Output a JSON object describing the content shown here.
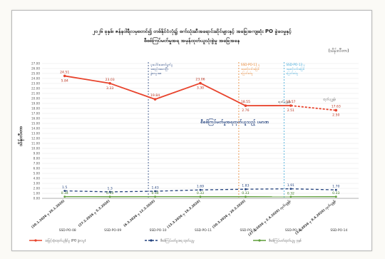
{
  "chart_data": {
    "type": "line",
    "title_line1": "၂၀၂၆ ခုနှစ်၊ ဇန်နဝါရီလမှစတင်၍ တစ်နိုင်ငံလုံး၌ စက်သုံးဆီအရောင်းဆိုင်များနှင့် အခြေအကျဆုံး PO ခွဲဝေမှုနှင့်",
    "title_line2": "စီစစ်ကြပ်မတ်မှုအရ အမှန်ထုတ်ယူသုံးစွဲမှု အခြေအနေ",
    "unit_label": "(သိန်းလီတာ)",
    "ylabel": "သိန်းလီတာ",
    "ylim": [
      0,
      27
    ],
    "ytick_step": 1,
    "ytick_labels": [
      "0.00",
      "1.00",
      "2.00",
      "3.00",
      "4.00",
      "5.00",
      "6.00",
      "7.00",
      "8.00",
      "9.00",
      "10.00",
      "11.00",
      "12.00",
      "13.00",
      "14.00",
      "15.00",
      "16.00",
      "17.00",
      "18.00",
      "19.00",
      "20.00",
      "21.00",
      "22.00",
      "23.00",
      "24.00",
      "25.00",
      "26.00",
      "27.00"
    ],
    "categories": [
      "(20.1.2026 မှ 26.1.2026)",
      "(27.2.2026 မှ 5.3.2026)",
      "(6.3.2026 မှ 12.3.2026)",
      "(13.3.2026 မှ 19.3.2026)",
      "(20.3.2026 မှ 26.3.2026)",
      "(27.3.2026 မှ 2.4.2026) ထုတ်ယူနှုန်း",
      "(3.4.2026 မှ 9.4.2026) ထုတ်ယူနှုန်း"
    ],
    "po_labels": [
      "SSD-PO-08",
      "SSD-PO-09",
      "SSD-PO-10",
      "SSD-PO-11",
      "SSD-PO-12",
      "SSD-PO-13",
      "SSD-PO-14"
    ],
    "series": [
      {
        "name": "အမြင့်ဆုံးထုတ်ယူနိုင်မှု (PO ခွဲဝေမှု)",
        "color": "#e8432c",
        "style": "solid",
        "values": [
          24.51,
          23.03,
          19.84,
          23.06,
          18.55,
          18.57,
          17.63
        ],
        "labels": [
          "24.51",
          "23.03",
          "19.84",
          "23.06",
          "18.55",
          "18.57",
          "17.63"
        ],
        "dashed_from": 5
      },
      {
        "name": "စီစစ်ကြပ်မတ်မှုအရ ထုတ်ယူမှု",
        "color": "#23427e",
        "style": "dashed",
        "values": [
          1.5,
          1.3,
          1.43,
          1.69,
          1.83,
          1.91,
          1.7
        ],
        "labels": [
          "1.5",
          "1.3",
          "1.43",
          "1.69",
          "1.83",
          "1.91",
          "1.70"
        ]
      },
      {
        "name": "စီစစ်ကြပ်မတ်ထုတ်ယူမှု ခုနှစ်",
        "color": "#5e9e3a",
        "style": "solid",
        "values": [
          0.34,
          0.33,
          0.34,
          0.33,
          0.33,
          0.32,
          0.33
        ],
        "labels": [
          "0.34",
          "0.33",
          "0.34",
          "0.33",
          "0.33",
          "0.32",
          "0.33"
        ]
      }
    ],
    "secondary_labels": [
      "5.84",
      "3.33",
      "",
      "3.30",
      "2.76",
      "2.51",
      "2.50"
    ],
    "annotations": [
      {
        "text_lines": [
          "ပူးပေါင်းဆောင်ရွက်မှု",
          "အစည်းအဝေးပြီး",
          "ခွဲဝေမှုအစ"
        ],
        "after_category": 1,
        "color": "#23427e"
      },
      {
        "text_lines": [
          "SSD-PO-11 မှ",
          "အဆင့်သစ်အဖြစ်",
          "ပြောင်းလဲမှု"
        ],
        "after_category": 3,
        "color": "#e8822c"
      },
      {
        "text_lines": [
          "SSD-PO-13 မှ",
          "အဆင့်သစ်အဖြစ်",
          "ပြောင်းလဲမှု"
        ],
        "after_category": 4,
        "color": "#3aa6d8"
      }
    ],
    "midlabel": "စီစစ်ကြပ်မတ်မှုအရထုတ်ယူသည့် ပမာဏ",
    "small_note": "ထုတ်ယူနှုန်း",
    "grid": true,
    "legend_position": "bottom"
  }
}
